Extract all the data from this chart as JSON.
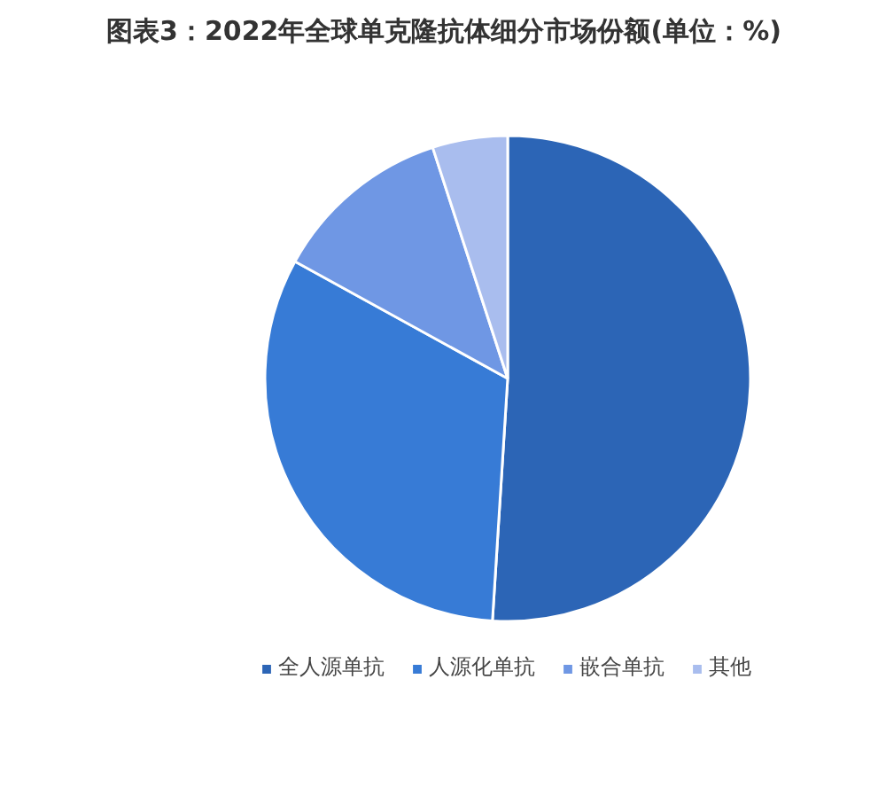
{
  "chart_data": {
    "type": "pie",
    "title": "图表3：2022年全球单克隆抗体细分市场份额(单位：%)",
    "categories": [
      "全人源单抗",
      "人源化单抗",
      "嵌合单抗",
      "其他"
    ],
    "values": [
      51,
      32,
      12,
      5
    ],
    "colors": [
      "#2c65b6",
      "#377bd6",
      "#6f97e4",
      "#a9bdee"
    ],
    "legend": "bottom"
  }
}
